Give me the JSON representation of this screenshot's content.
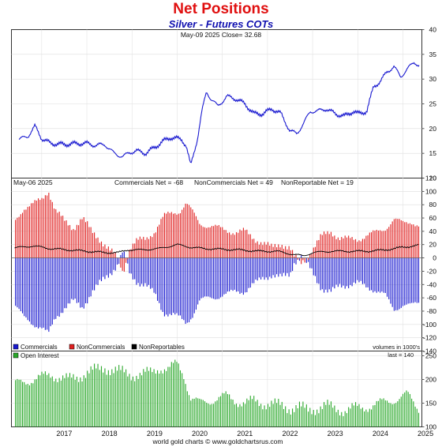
{
  "chart_data": [
    {
      "type": "line",
      "title": "Net Positions",
      "subtitle": "Silver - Futures COTs",
      "header": "May-09  2025   Close= 32.68",
      "ylim": [
        10,
        40
      ],
      "y_ticks": [
        "10",
        "15",
        "20",
        "25",
        "30",
        "35",
        "40"
      ],
      "series": [
        {
          "name": "Silver price",
          "color": "#1a1ad0",
          "x": [
            2016.5,
            2016.7,
            2016.85,
            2017.0,
            2017.2,
            2017.5,
            2017.8,
            2018.0,
            2018.2,
            2018.4,
            2018.6,
            2018.8,
            2018.95,
            2019.1,
            2019.3,
            2019.5,
            2019.7,
            2019.85,
            2020.0,
            2020.1,
            2020.2,
            2020.3,
            2020.45,
            2020.55,
            2020.65,
            2020.75,
            2020.9,
            2021.1,
            2021.3,
            2021.5,
            2021.7,
            2021.9,
            2022.1,
            2022.3,
            2022.5,
            2022.65,
            2022.8,
            2022.95,
            2023.1,
            2023.3,
            2023.5,
            2023.7,
            2023.9,
            2024.0,
            2024.2,
            2024.35,
            2024.5,
            2024.65,
            2024.8,
            2024.95,
            2025.1,
            2025.25,
            2025.36
          ],
          "y": [
            17.8,
            18.5,
            20.5,
            18.0,
            17.0,
            16.8,
            17.0,
            17.0,
            16.6,
            16.8,
            15.0,
            14.3,
            15.2,
            15.5,
            15.0,
            16.2,
            17.5,
            18.2,
            18.0,
            17.8,
            16.5,
            12.5,
            18.0,
            23.5,
            27.5,
            26.0,
            24.5,
            26.5,
            26.0,
            25.0,
            23.0,
            23.0,
            24.0,
            23.0,
            19.5,
            19.0,
            21.0,
            23.5,
            23.5,
            24.0,
            23.0,
            22.5,
            23.5,
            23.0,
            23.5,
            28.5,
            29.5,
            31.5,
            32.5,
            30.5,
            32.0,
            33.5,
            32.7
          ]
        }
      ]
    },
    {
      "type": "bar",
      "header": "May-06  2025",
      "labels": [
        "Commercials Net = -68",
        "NonCommercials Net = 49",
        "NonReportable Net = 19"
      ],
      "ylim": [
        -140,
        120
      ],
      "y_ticks": [
        "-140",
        "-120",
        "-100",
        "-80",
        "-60",
        "-40",
        "-20",
        "0",
        "20",
        "40",
        "60",
        "80",
        "100",
        "120"
      ],
      "units_note": "volumes in 1000's",
      "series": [
        {
          "name": "Commercials",
          "color": "#1a1ad0",
          "x": [
            2016.4,
            2016.6,
            2016.8,
            2017.0,
            2017.15,
            2017.3,
            2017.5,
            2017.7,
            2017.9,
            2018.1,
            2018.3,
            2018.5,
            2018.7,
            2018.8,
            2018.95,
            2019.1,
            2019.3,
            2019.5,
            2019.7,
            2019.9,
            2020.05,
            2020.2,
            2020.35,
            2020.5,
            2020.7,
            2020.9,
            2021.1,
            2021.3,
            2021.5,
            2021.7,
            2021.9,
            2022.1,
            2022.3,
            2022.5,
            2022.6,
            2022.75,
            2022.9,
            2023.05,
            2023.2,
            2023.4,
            2023.6,
            2023.8,
            2024.0,
            2024.2,
            2024.4,
            2024.6,
            2024.8,
            2025.0,
            2025.2,
            2025.34
          ],
          "y": [
            -70,
            -90,
            -98,
            -105,
            -115,
            -90,
            -75,
            -65,
            -75,
            -52,
            -38,
            -24,
            -8,
            10,
            -25,
            -35,
            -40,
            -55,
            -82,
            -85,
            -90,
            -98,
            -85,
            -65,
            -60,
            -58,
            -55,
            -50,
            -50,
            -40,
            -30,
            -25,
            -30,
            -25,
            -5,
            2,
            -12,
            -28,
            -45,
            -52,
            -42,
            -40,
            -38,
            -44,
            -48,
            -56,
            -78,
            -70,
            -72,
            -68
          ]
        },
        {
          "name": "NonCommercials",
          "color": "#e02020",
          "x": [
            2016.4,
            2016.6,
            2016.8,
            2017.0,
            2017.15,
            2017.3,
            2017.5,
            2017.7,
            2017.9,
            2018.1,
            2018.3,
            2018.5,
            2018.7,
            2018.8,
            2018.95,
            2019.1,
            2019.3,
            2019.5,
            2019.7,
            2019.9,
            2020.05,
            2020.2,
            2020.35,
            2020.5,
            2020.7,
            2020.9,
            2021.1,
            2021.3,
            2021.5,
            2021.7,
            2021.9,
            2022.1,
            2022.3,
            2022.5,
            2022.6,
            2022.75,
            2022.9,
            2023.05,
            2023.2,
            2023.4,
            2023.6,
            2023.8,
            2024.0,
            2024.2,
            2024.4,
            2024.6,
            2024.8,
            2025.0,
            2025.2,
            2025.34
          ],
          "y": [
            55,
            75,
            80,
            88,
            102,
            72,
            55,
            45,
            60,
            40,
            28,
            12,
            -2,
            -22,
            15,
            25,
            28,
            40,
            62,
            68,
            70,
            82,
            68,
            52,
            48,
            45,
            42,
            38,
            40,
            30,
            22,
            15,
            22,
            15,
            0,
            -8,
            3,
            18,
            32,
            40,
            30,
            28,
            28,
            34,
            38,
            44,
            58,
            52,
            55,
            49
          ]
        },
        {
          "name": "NonReportables",
          "color": "#000000",
          "x": [
            2016.4,
            2016.8,
            2017.2,
            2017.6,
            2018.0,
            2018.4,
            2018.7,
            2018.9,
            2019.2,
            2019.6,
            2020.0,
            2020.3,
            2020.6,
            2021.0,
            2021.4,
            2021.8,
            2022.2,
            2022.6,
            2022.8,
            2023.0,
            2023.4,
            2023.8,
            2024.2,
            2024.6,
            2025.0,
            2025.34
          ],
          "y": [
            15,
            18,
            14,
            12,
            10,
            8,
            8,
            12,
            12,
            14,
            20,
            16,
            14,
            13,
            12,
            10,
            10,
            5,
            3,
            8,
            10,
            10,
            10,
            12,
            16,
            19
          ]
        }
      ]
    },
    {
      "type": "bar",
      "legend": [
        "Open Interest"
      ],
      "last_value": "last = 140",
      "ylim": [
        100,
        260
      ],
      "y_ticks": [
        "100",
        "150",
        "200",
        "250"
      ],
      "x_ticks": [
        "2017",
        "2018",
        "2019",
        "2020",
        "2021",
        "2022",
        "2023",
        "2024",
        "2025"
      ],
      "series": [
        {
          "name": "Open Interest",
          "color": "#2aa82a",
          "x": [
            2016.4,
            2016.6,
            2016.8,
            2017.0,
            2017.2,
            2017.4,
            2017.6,
            2017.8,
            2018.0,
            2018.2,
            2018.4,
            2018.6,
            2018.8,
            2019.0,
            2019.2,
            2019.4,
            2019.6,
            2019.8,
            2020.0,
            2020.15,
            2020.3,
            2020.5,
            2020.7,
            2020.9,
            2021.1,
            2021.3,
            2021.5,
            2021.7,
            2021.9,
            2022.1,
            2022.3,
            2022.5,
            2022.7,
            2022.9,
            2023.1,
            2023.3,
            2023.5,
            2023.7,
            2023.9,
            2024.1,
            2024.3,
            2024.5,
            2024.7,
            2024.9,
            2025.1,
            2025.34
          ],
          "y": [
            190,
            195,
            200,
            205,
            210,
            205,
            200,
            205,
            215,
            220,
            225,
            220,
            215,
            210,
            210,
            215,
            225,
            220,
            235,
            210,
            160,
            150,
            155,
            160,
            165,
            155,
            150,
            155,
            150,
            148,
            145,
            140,
            142,
            135,
            140,
            145,
            138,
            135,
            140,
            140,
            145,
            150,
            155,
            160,
            168,
            140
          ]
        }
      ]
    }
  ],
  "footer": "world gold charts © www.goldchartsrus.com"
}
